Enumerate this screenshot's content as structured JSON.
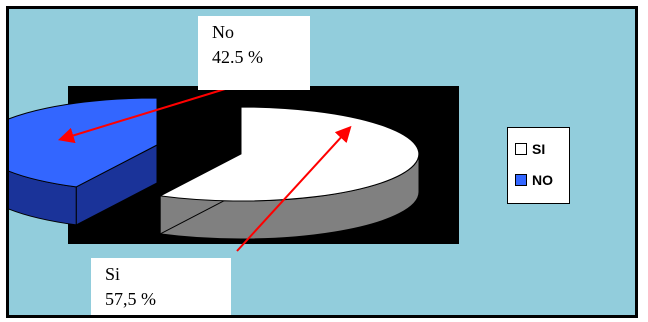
{
  "chart_data": {
    "type": "pie",
    "categories": [
      "SI",
      "NO"
    ],
    "values": [
      57.5,
      42.5
    ],
    "colors": [
      "#ffffff",
      "#3366ff"
    ],
    "side_colors": [
      "#808080",
      "#1a3399"
    ],
    "plot_background": "#000000",
    "background": "#92cddc",
    "legend": {
      "entries": [
        "SI",
        "NO"
      ],
      "placement": "right"
    },
    "annotations": [
      {
        "line1": "No",
        "line2": "42.5 %"
      },
      {
        "line1": "Si",
        "line2": "57,5 %"
      }
    ],
    "arrow_color": "#ff0000"
  }
}
